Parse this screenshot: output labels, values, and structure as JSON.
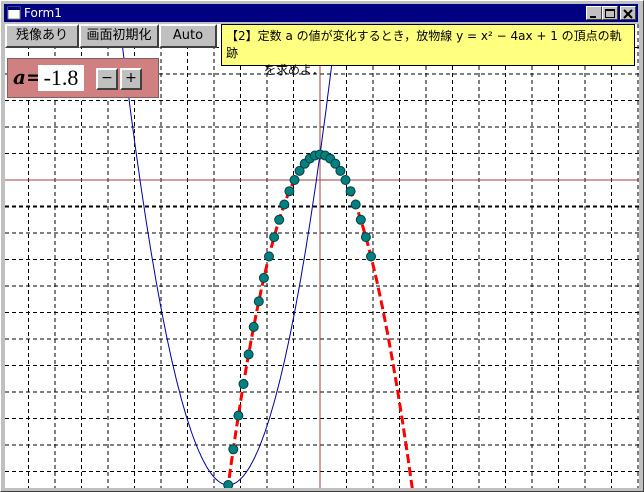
{
  "window": {
    "title": "Form1"
  },
  "toolbar": {
    "buttons": [
      "残像あり",
      "画面初期化",
      "Auto"
    ]
  },
  "note": {
    "lines": [
      "【2】定数 a の値が変化するとき，放物線 y = x² − 4ax + 1 の頂点の軌跡",
      "を求めよ．"
    ]
  },
  "control": {
    "label": "a=",
    "value": "-1.8",
    "minus": "−",
    "plus": "+"
  }
}
